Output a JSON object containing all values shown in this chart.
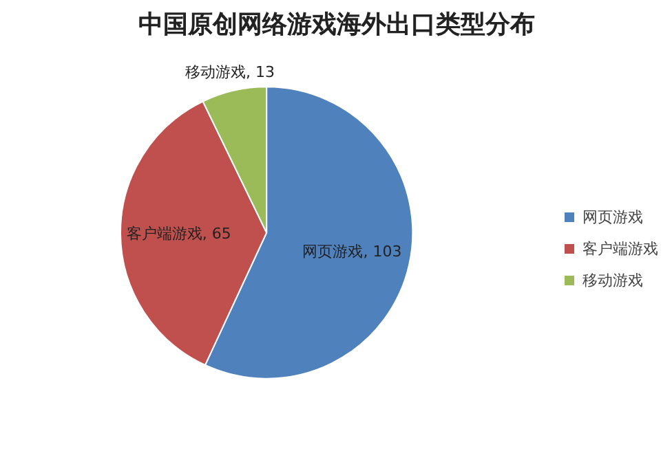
{
  "chart_data": {
    "type": "pie",
    "title": "中国原创网络游戏海外出口类型分布",
    "categories": [
      "网页游戏",
      "客户端游戏",
      "移动游戏"
    ],
    "values": [
      103,
      65,
      13
    ],
    "colors": [
      "#4f81bd",
      "#c0504d",
      "#9bbb59"
    ],
    "value_labels": [
      "网页游戏, 103",
      "客户端游戏, 65",
      "移动游戏, 13"
    ],
    "legend": "right"
  }
}
